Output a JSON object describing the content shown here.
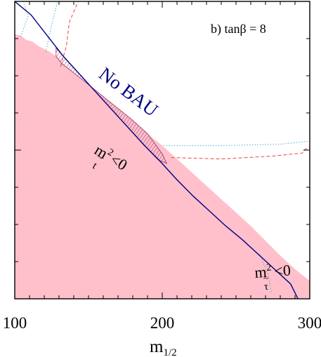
{
  "chart_data": {
    "type": "line",
    "panel_label": "b) tanβ = 8",
    "xlabel_base": "m",
    "xlabel_sub": "1/2",
    "xlim": [
      100,
      300
    ],
    "x_ticks": [
      "100",
      "200",
      "300"
    ],
    "y_tick_labels": [],
    "region_labels": {
      "no_bau": "No BAU",
      "stop_tachyon": {
        "base": "m",
        "sup": "2",
        "sub": "t",
        "tail": "<0"
      },
      "stau_tachyon": {
        "base": "m",
        "sup": "2",
        "sub": "τ",
        "tail": "<0"
      }
    },
    "no_bau_boundary": [
      [
        100,
        1.0
      ],
      [
        111,
        0.955
      ],
      [
        122,
        0.885
      ],
      [
        133,
        0.815
      ],
      [
        144,
        0.755
      ],
      [
        155,
        0.695
      ],
      [
        166,
        0.635
      ],
      [
        177,
        0.575
      ],
      [
        188,
        0.515
      ],
      [
        199,
        0.46
      ],
      [
        210,
        0.4
      ],
      [
        221,
        0.345
      ],
      [
        232,
        0.295
      ],
      [
        243,
        0.245
      ],
      [
        254,
        0.2
      ],
      [
        265,
        0.15
      ],
      [
        276,
        0.1
      ],
      [
        287,
        0.05
      ],
      [
        292,
        0.0
      ]
    ],
    "excluded_boundary": [
      [
        100,
        0.89
      ],
      [
        104,
        0.885
      ],
      [
        108,
        0.87
      ],
      [
        112,
        0.865
      ],
      [
        116,
        0.85
      ],
      [
        120,
        0.84
      ],
      [
        124,
        0.83
      ],
      [
        128,
        0.815
      ],
      [
        134,
        0.785
      ],
      [
        140,
        0.76
      ],
      [
        150,
        0.72
      ],
      [
        160,
        0.68
      ],
      [
        170,
        0.64
      ],
      [
        180,
        0.6
      ],
      [
        190,
        0.555
      ],
      [
        200,
        0.515
      ],
      [
        210,
        0.47
      ],
      [
        220,
        0.425
      ],
      [
        230,
        0.38
      ],
      [
        240,
        0.335
      ],
      [
        250,
        0.29
      ],
      [
        260,
        0.245
      ],
      [
        270,
        0.195
      ],
      [
        280,
        0.145
      ],
      [
        290,
        0.1
      ],
      [
        300,
        0.06
      ]
    ],
    "hatched_region": [
      [
        128,
        0.843
      ],
      [
        133,
        0.815
      ],
      [
        144,
        0.755
      ],
      [
        155,
        0.695
      ],
      [
        166,
        0.635
      ],
      [
        177,
        0.575
      ],
      [
        188,
        0.515
      ],
      [
        197,
        0.468
      ],
      [
        203,
        0.455
      ],
      [
        200,
        0.487
      ],
      [
        190,
        0.555
      ],
      [
        180,
        0.6
      ],
      [
        170,
        0.64
      ],
      [
        160,
        0.68
      ],
      [
        150,
        0.72
      ],
      [
        140,
        0.76
      ],
      [
        132,
        0.79
      ],
      [
        128,
        0.815
      ]
    ],
    "blue_dotted": [
      [
        [
          106,
          1.0
        ],
        [
          109,
          0.95
        ],
        [
          104,
          0.88
        ]
      ],
      [
        [
          121,
          0.83
        ],
        [
          125,
          0.92
        ],
        [
          129,
          1.0
        ]
      ],
      [
        [
          201,
          0.515
        ],
        [
          240,
          0.515
        ],
        [
          280,
          0.52
        ],
        [
          300,
          0.53
        ]
      ],
      [
        [
          266,
          0.15
        ],
        [
          272,
          0.08
        ],
        [
          274,
          0.02
        ]
      ]
    ],
    "red_dashed": [
      [
        [
          131,
          0.78
        ],
        [
          135,
          0.85
        ],
        [
          137,
          0.93
        ],
        [
          143,
          1.0
        ]
      ],
      [
        [
          206,
          0.475
        ],
        [
          240,
          0.47
        ],
        [
          275,
          0.48
        ],
        [
          295,
          0.49
        ],
        [
          296,
          0.5
        ],
        [
          300,
          0.51
        ]
      ]
    ],
    "colors": {
      "excluded_fill": "#ffc0cb",
      "no_bau_line": "#000080",
      "hatch": "#993366",
      "dotted": "#3399cc",
      "dashed": "#ee4444",
      "axis": "#000000"
    }
  }
}
